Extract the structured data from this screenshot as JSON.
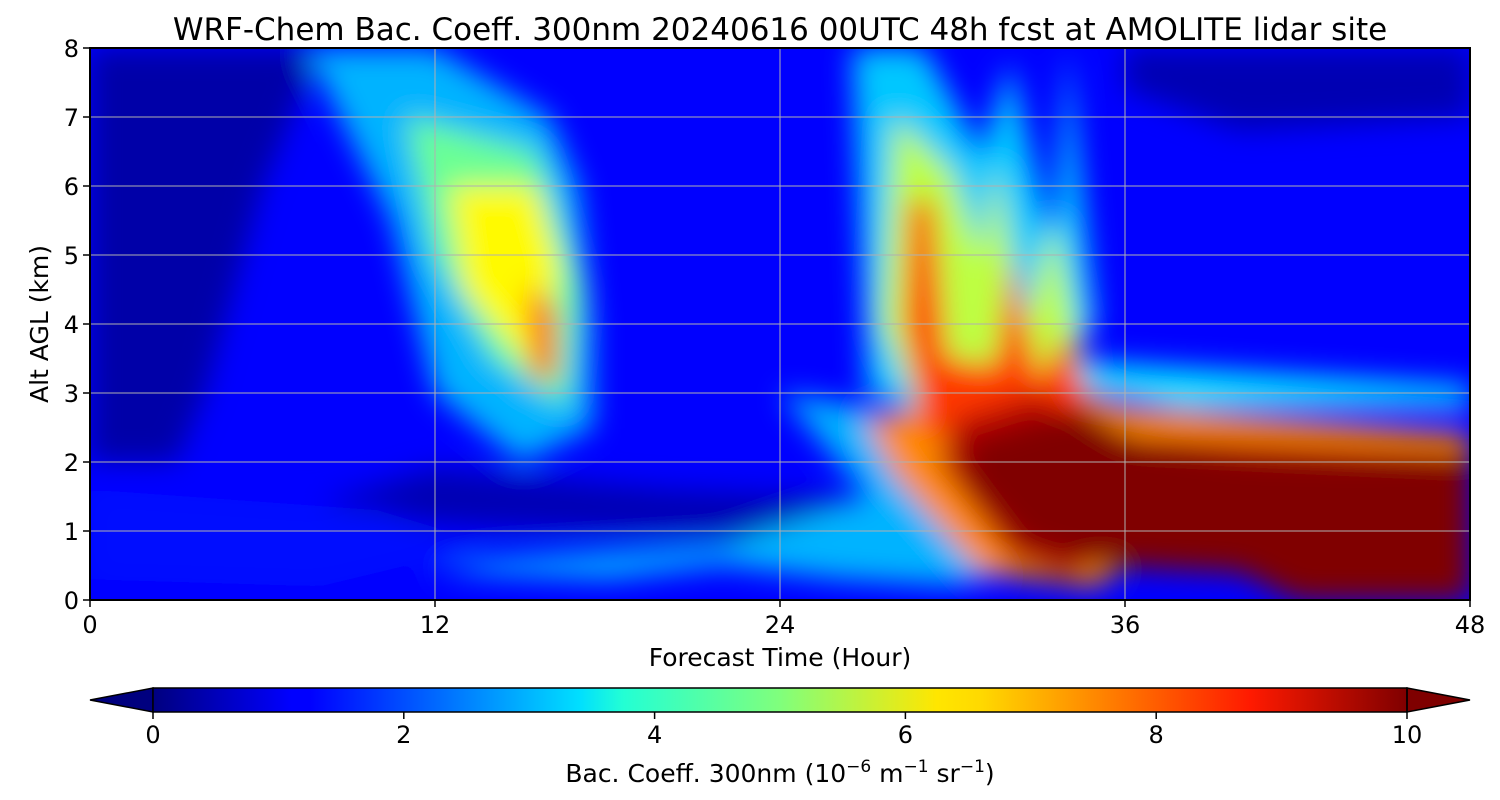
{
  "chart_data": {
    "type": "heatmap",
    "title": "WRF-Chem Bac. Coeff. 300nm  20240616 00UTC 48h fcst at AMOLITE lidar site",
    "xlabel": "Forecast Time (Hour)",
    "ylabel": "Alt AGL (km)",
    "xlim": [
      0,
      48
    ],
    "ylim": [
      0,
      8
    ],
    "xticks": [
      "0",
      "12",
      "24",
      "36",
      "48"
    ],
    "yticks": [
      "0",
      "1",
      "2",
      "3",
      "4",
      "5",
      "6",
      "7",
      "8"
    ],
    "grid": true,
    "colormap": "jet",
    "colorbar": {
      "orientation": "horizontal",
      "placement": "bottom",
      "range": [
        0,
        10
      ],
      "extend": "both",
      "ticks": [
        "0",
        "2",
        "4",
        "6",
        "8",
        "10"
      ],
      "label_prefix": "Bac. Coeff. 300nm  (10",
      "label_exp1": "−6",
      "label_mid": " m",
      "label_exp2": "−1",
      "label_mid2": " sr",
      "label_exp3": "−1",
      "label_suffix": ")"
    },
    "z_description_units": "10^-6 m^-1 sr^-1",
    "features": [
      {
        "name": "descending aerosol plume",
        "time_range": [
          8,
          20
        ],
        "alt_range": [
          2,
          8
        ],
        "peak_value": 6.5
      },
      {
        "name": "mid-level maximum",
        "time": 16,
        "alt": 3.7,
        "peak_value": 8.5
      },
      {
        "name": "elevated layer",
        "time_range": [
          27,
          35
        ],
        "alt_range": [
          2.5,
          6
        ],
        "peak_value": 9
      },
      {
        "name": "saturated boundary layer",
        "time_range": [
          29,
          48
        ],
        "alt_range": [
          0,
          2.3
        ],
        "peak_value": 10
      }
    ]
  }
}
